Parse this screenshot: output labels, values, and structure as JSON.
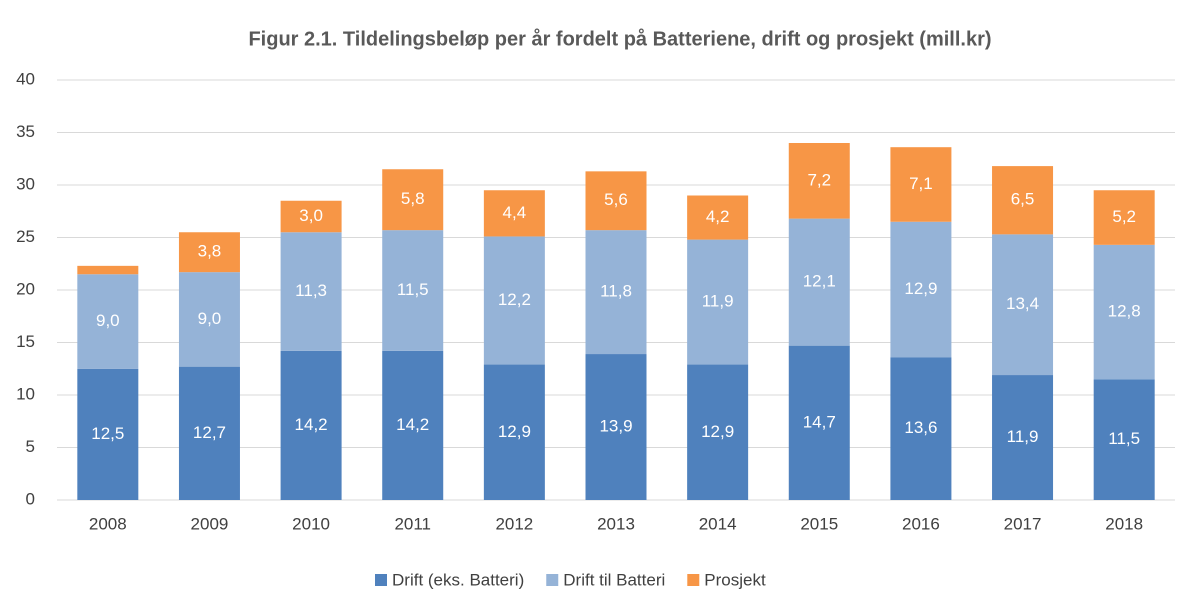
{
  "chart_data": {
    "type": "bar",
    "stacked": true,
    "title": "Figur 2.1. Tildelingsbeløp per år fordelt på Batteriene, drift og prosjekt (mill.kr)",
    "categories": [
      "2008",
      "2009",
      "2010",
      "2011",
      "2012",
      "2013",
      "2014",
      "2015",
      "2016",
      "2017",
      "2018"
    ],
    "series": [
      {
        "name": "Drift (eks. Batteri)",
        "color": "#4f81bd",
        "values": [
          12.5,
          12.7,
          14.2,
          14.2,
          12.9,
          13.9,
          12.9,
          14.7,
          13.6,
          11.9,
          11.5
        ],
        "value_labels": [
          "12,5",
          "12,7",
          "14,2",
          "14,2",
          "12,9",
          "13,9",
          "12,9",
          "14,7",
          "13,6",
          "11,9",
          "11,5"
        ]
      },
      {
        "name": "Drift til Batteri",
        "color": "#95b3d7",
        "values": [
          9.0,
          9.0,
          11.3,
          11.5,
          12.2,
          11.8,
          11.9,
          12.1,
          12.9,
          13.4,
          12.8
        ],
        "value_labels": [
          "9,0",
          "9,0",
          "11,3",
          "11,5",
          "12,2",
          "11,8",
          "11,9",
          "12,1",
          "12,9",
          "13,4",
          "12,8"
        ]
      },
      {
        "name": "Prosjekt",
        "color": "#f79646",
        "values": [
          0.8,
          3.8,
          3.0,
          5.8,
          4.4,
          5.6,
          4.2,
          7.2,
          7.1,
          6.5,
          5.2
        ],
        "value_labels": [
          null,
          "3,8",
          "3,0",
          "5,8",
          "4,4",
          "5,6",
          "4,2",
          "7,2",
          "7,1",
          "6,5",
          "5,2"
        ]
      }
    ],
    "ylim": [
      0,
      40
    ],
    "yticks": [
      0,
      5,
      10,
      15,
      20,
      25,
      30,
      35,
      40
    ],
    "grid": true,
    "legend": "bottom"
  }
}
